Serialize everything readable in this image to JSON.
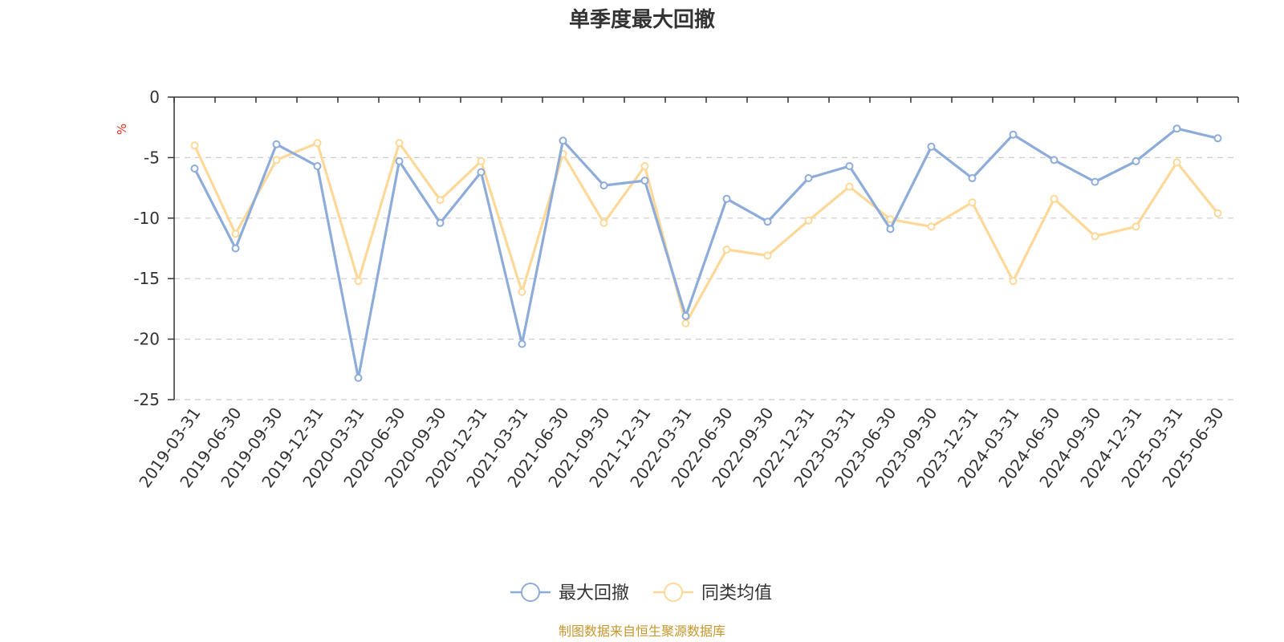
{
  "colors": {
    "series1": "#8eacd9",
    "series2": "#fdd898",
    "unit": "#e8291c",
    "source": "#c7962b",
    "axis": "#333333",
    "grid": "#cccccc"
  },
  "source_text": "制图数据来自恒生聚源数据库",
  "chart_data": {
    "type": "line",
    "title": "单季度最大回撤",
    "ylabel": "%",
    "xlabel": "",
    "ylim": [
      -25,
      0
    ],
    "yticks": [
      0,
      -5,
      -10,
      -15,
      -20,
      -25
    ],
    "grid": "horizontal-dashed",
    "legend_position": "bottom-center",
    "categories": [
      "2019-03-31",
      "2019-06-30",
      "2019-09-30",
      "2019-12-31",
      "2020-03-31",
      "2020-06-30",
      "2020-09-30",
      "2020-12-31",
      "2021-03-31",
      "2021-06-30",
      "2021-09-30",
      "2021-12-31",
      "2022-03-31",
      "2022-06-30",
      "2022-09-30",
      "2022-12-31",
      "2023-03-31",
      "2023-06-30",
      "2023-09-30",
      "2023-12-31",
      "2024-03-31",
      "2024-06-30",
      "2024-09-30",
      "2024-12-31",
      "2025-03-31",
      "2025-06-30"
    ],
    "series": [
      {
        "name": "最大回撤",
        "color": "#8eacd9",
        "values": [
          -5.9,
          -12.5,
          -3.9,
          -5.7,
          -23.2,
          -5.3,
          -10.4,
          -6.2,
          -20.4,
          -3.6,
          -7.3,
          -6.9,
          -18.1,
          -8.4,
          -10.3,
          -6.7,
          -5.7,
          -10.9,
          -4.1,
          -6.7,
          -3.1,
          -5.2,
          -7.0,
          -5.3,
          -2.6,
          -3.4
        ]
      },
      {
        "name": "同类均值",
        "color": "#fdd898",
        "values": [
          -4.0,
          -11.3,
          -5.2,
          -3.8,
          -15.2,
          -3.8,
          -8.5,
          -5.3,
          -16.1,
          -4.7,
          -10.4,
          -5.7,
          -18.7,
          -12.6,
          -13.1,
          -10.2,
          -7.4,
          -10.1,
          -10.7,
          -8.7,
          -15.2,
          -8.4,
          -11.5,
          -10.7,
          -5.4,
          -9.6
        ]
      }
    ]
  }
}
